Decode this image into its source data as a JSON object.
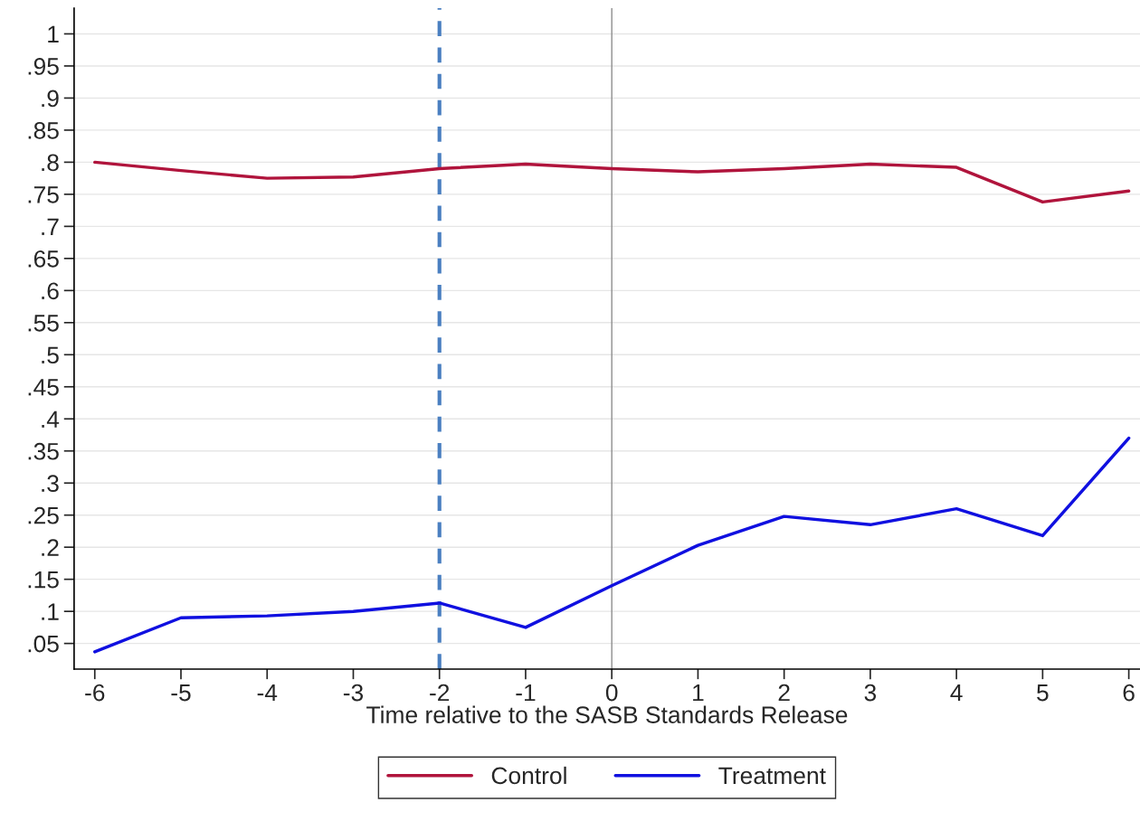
{
  "chart_data": {
    "type": "line",
    "xlabel": "Time relative to the SASB Standards Release",
    "x": [
      -6,
      -5,
      -4,
      -3,
      -2,
      -1,
      0,
      1,
      2,
      3,
      4,
      5,
      6
    ],
    "series": [
      {
        "name": "Control",
        "color": "#b0143c",
        "values": [
          0.8,
          0.787,
          0.775,
          0.777,
          0.79,
          0.797,
          0.79,
          0.785,
          0.79,
          0.797,
          0.792,
          0.738,
          0.755
        ]
      },
      {
        "name": "Treatment",
        "color": "#1010e0",
        "values": [
          0.037,
          0.09,
          0.093,
          0.1,
          0.113,
          0.075,
          0.14,
          0.203,
          0.248,
          0.235,
          0.26,
          0.218,
          0.37
        ]
      }
    ],
    "xlim": [
      -6.24,
      6.13
    ],
    "xticks": [
      -6,
      -5,
      -4,
      -3,
      -2,
      -1,
      0,
      1,
      2,
      3,
      4,
      5,
      6
    ],
    "ylim": [
      0.01,
      1.04
    ],
    "yticks": [
      1,
      {
        "value": 0.95,
        "label": ".95"
      },
      {
        "value": 0.9,
        "label": ".9"
      },
      {
        "value": 0.85,
        "label": ".85"
      },
      {
        "value": 0.8,
        "label": ".8"
      },
      {
        "value": 0.75,
        "label": ".75"
      },
      {
        "value": 0.7,
        "label": ".7"
      },
      {
        "value": 0.65,
        "label": ".65"
      },
      {
        "value": 0.6,
        "label": ".6"
      },
      {
        "value": 0.55,
        "label": ".55"
      },
      {
        "value": 0.5,
        "label": ".5"
      },
      {
        "value": 0.45,
        "label": ".45"
      },
      {
        "value": 0.4,
        "label": ".4"
      },
      {
        "value": 0.35,
        "label": ".35"
      },
      {
        "value": 0.3,
        "label": ".3"
      },
      {
        "value": 0.25,
        "label": ".25"
      },
      {
        "value": 0.2,
        "label": ".2"
      },
      {
        "value": 0.15,
        "label": ".15"
      },
      {
        "value": 0.1,
        "label": ".1"
      },
      {
        "value": 0.05,
        "label": ".05"
      }
    ],
    "ref_lines": [
      {
        "axis": "x",
        "value": 0,
        "color": "#8c8c8c",
        "line_style": "solid"
      },
      {
        "axis": "x",
        "value": -2,
        "color": "#4a7fc1",
        "line_style": "dashed"
      }
    ],
    "grid": "y",
    "legend": "bottom",
    "line_style": "solid",
    "marker": "none"
  }
}
